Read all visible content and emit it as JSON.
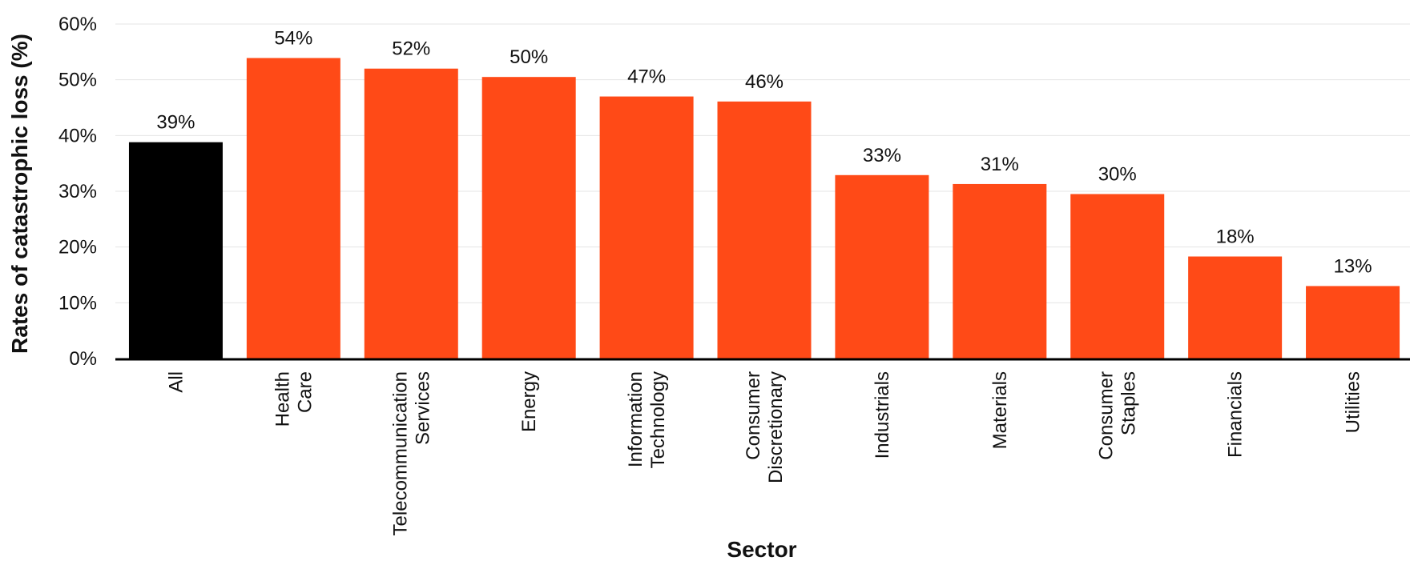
{
  "chart_data": {
    "type": "bar",
    "xlabel": "Sector",
    "ylabel": "Rates of catastrophic loss (%)",
    "ylim": [
      0,
      60
    ],
    "yticks": [
      0,
      10,
      20,
      30,
      40,
      50,
      60
    ],
    "ytick_labels": [
      "0%",
      "10%",
      "20%",
      "30%",
      "40%",
      "50%",
      "60%"
    ],
    "grid": true,
    "categories": [
      [
        "All"
      ],
      [
        "Health",
        "Care"
      ],
      [
        "Telecommunication",
        "Services"
      ],
      [
        "Energy"
      ],
      [
        "Information",
        "Technology"
      ],
      [
        "Consumer",
        "Discretionary"
      ],
      [
        "Industrials"
      ],
      [
        "Materials"
      ],
      [
        "Consumer",
        "Staples"
      ],
      [
        "Financials"
      ],
      [
        "Utilities"
      ]
    ],
    "values": [
      38.8,
      53.9,
      52.0,
      50.5,
      47.0,
      46.1,
      32.9,
      31.3,
      29.5,
      18.3,
      13.0
    ],
    "data_labels": [
      "39%",
      "54%",
      "52%",
      "50%",
      "47%",
      "46%",
      "33%",
      "31%",
      "30%",
      "18%",
      "13%"
    ],
    "colors": {
      "highlight": "#000000",
      "bar": "#FF4A17",
      "grid": "#e4e4e4",
      "axis": "#000000"
    },
    "highlight_index": 0
  }
}
